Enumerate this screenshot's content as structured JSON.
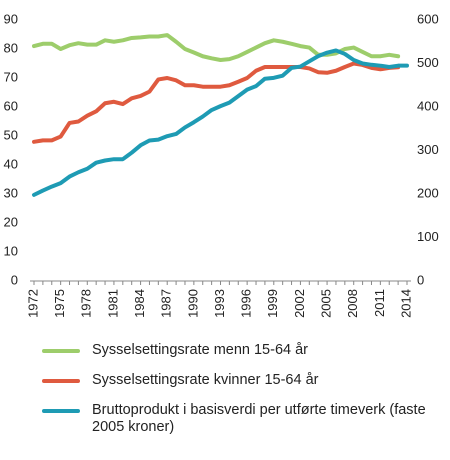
{
  "chart_data": {
    "type": "line",
    "x": [
      1972,
      1973,
      1974,
      1975,
      1976,
      1977,
      1978,
      1979,
      1980,
      1981,
      1982,
      1983,
      1984,
      1985,
      1986,
      1987,
      1988,
      1989,
      1990,
      1991,
      1992,
      1993,
      1994,
      1995,
      1996,
      1997,
      1998,
      1999,
      2000,
      2001,
      2002,
      2003,
      2004,
      2005,
      2006,
      2007,
      2008,
      2009,
      2010,
      2011,
      2012,
      2013,
      2014
    ],
    "x_tick_labels": [
      "1972",
      "1975",
      "1978",
      "1981",
      "1984",
      "1987",
      "1990",
      "1993",
      "1996",
      "1999",
      "2002",
      "2005",
      "2008",
      "2011",
      "2014"
    ],
    "y_left": {
      "ylim": [
        0,
        90
      ],
      "ticks": [
        0,
        10,
        20,
        30,
        40,
        50,
        60,
        70,
        80,
        90
      ]
    },
    "y_right": {
      "ylim": [
        0,
        600
      ],
      "ticks": [
        0,
        100,
        200,
        300,
        400,
        500,
        600
      ]
    },
    "grid": false,
    "legend_placement": "bottom",
    "series": [
      {
        "name": "Sysselsettingsrate menn 15-64 år",
        "color": "#9dcd6b",
        "axis": "left",
        "values": [
          81.0,
          81.8,
          81.8,
          80.0,
          81.3,
          82.0,
          81.5,
          81.5,
          83.0,
          82.5,
          83.0,
          83.8,
          84.0,
          84.3,
          84.3,
          84.8,
          82.5,
          80.0,
          78.8,
          77.5,
          76.8,
          76.2,
          76.5,
          77.5,
          79.0,
          80.5,
          82.0,
          83.0,
          82.5,
          81.8,
          81.0,
          80.5,
          78.0,
          78.0,
          78.5,
          80.0,
          80.5,
          79.0,
          77.5,
          77.5,
          78.0,
          77.5,
          null
        ]
      },
      {
        "name": "Sysselsettingsrate kvinner 15-64 år",
        "color": "#df5a3f",
        "axis": "left",
        "values": [
          48.0,
          48.5,
          48.5,
          49.8,
          54.5,
          55.0,
          57.0,
          58.5,
          61.3,
          61.8,
          61.0,
          63.0,
          63.8,
          65.3,
          69.5,
          70.0,
          69.2,
          67.5,
          67.5,
          67.0,
          67.0,
          67.0,
          67.5,
          68.7,
          70.0,
          72.5,
          73.8,
          73.8,
          73.8,
          73.8,
          73.8,
          73.3,
          72.0,
          71.8,
          72.5,
          73.8,
          75.0,
          74.5,
          73.5,
          73.0,
          73.5,
          73.7,
          null
        ]
      },
      {
        "name": "Bruttoprodukt i basisverdi per utførte timeverk (faste 2005 kroner)",
        "color": "#1e9bb4",
        "axis": "right",
        "values": [
          198,
          208,
          217,
          225,
          240,
          250,
          258,
          272,
          277,
          280,
          280,
          295,
          312,
          323,
          325,
          333,
          338,
          353,
          365,
          378,
          393,
          402,
          410,
          425,
          440,
          448,
          465,
          467,
          472,
          490,
          493,
          505,
          517,
          525,
          530,
          522,
          508,
          500,
          497,
          495,
          492,
          495,
          495
        ]
      }
    ]
  }
}
